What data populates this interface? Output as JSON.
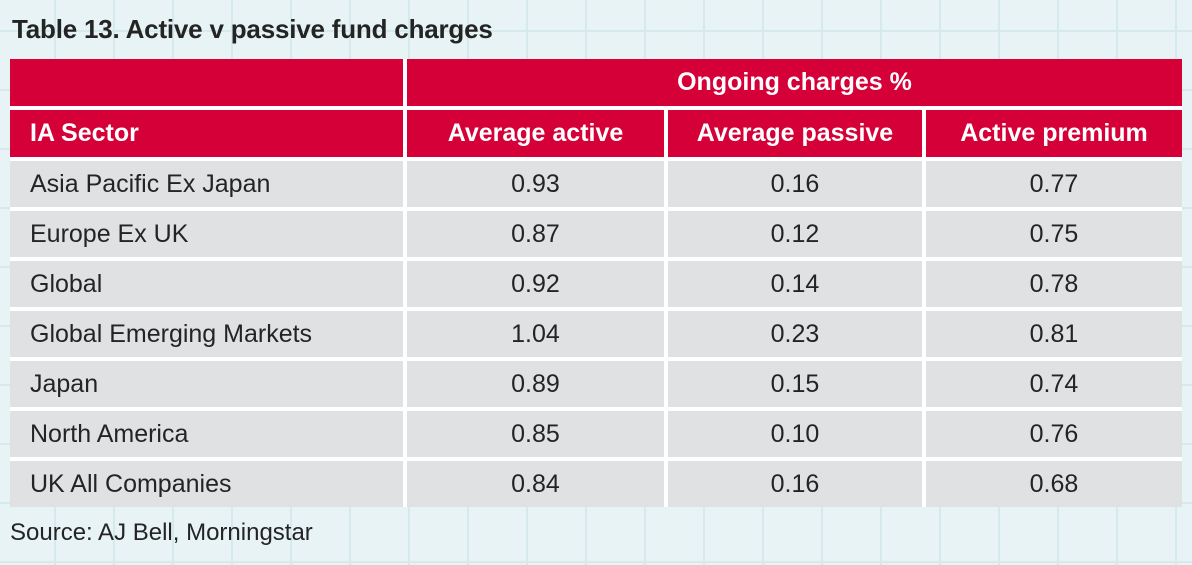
{
  "title": "Table 13. Active v passive fund charges",
  "source": "Source: AJ Bell, Morningstar",
  "table": {
    "group_header": "Ongoing charges %",
    "headers": {
      "sector": "IA Sector",
      "active": "Average active",
      "passive": "Average passive",
      "premium": "Active premium"
    },
    "rows": [
      {
        "sector": "Asia Pacific Ex Japan",
        "active": "0.93",
        "passive": "0.16",
        "premium": "0.77"
      },
      {
        "sector": "Europe Ex UK",
        "active": "0.87",
        "passive": "0.12",
        "premium": "0.75"
      },
      {
        "sector": "Global",
        "active": "0.92",
        "passive": "0.14",
        "premium": "0.78"
      },
      {
        "sector": "Global Emerging Markets",
        "active": "1.04",
        "passive": "0.23",
        "premium": "0.81"
      },
      {
        "sector": "Japan",
        "active": "0.89",
        "passive": "0.15",
        "premium": "0.74"
      },
      {
        "sector": "North America",
        "active": "0.85",
        "passive": "0.10",
        "premium": "0.76"
      },
      {
        "sector": "UK All Companies",
        "active": "0.84",
        "passive": "0.16",
        "premium": "0.68"
      }
    ]
  },
  "colors": {
    "header_red": "#d50037",
    "row_gray": "#e0e1e2",
    "background": "#e7f3f5",
    "grid_line": "#d6e9ec",
    "gap_white": "#ffffff",
    "text_dark": "#242424"
  },
  "chart_data": {
    "type": "table",
    "title": "Table 13. Active v passive fund charges",
    "group_header": "Ongoing charges %",
    "columns": [
      "IA Sector",
      "Average active",
      "Average passive",
      "Active premium"
    ],
    "rows": [
      [
        "Asia Pacific Ex Japan",
        0.93,
        0.16,
        0.77
      ],
      [
        "Europe Ex UK",
        0.87,
        0.12,
        0.75
      ],
      [
        "Global",
        0.92,
        0.14,
        0.78
      ],
      [
        "Global Emerging Markets",
        1.04,
        0.23,
        0.81
      ],
      [
        "Japan",
        0.89,
        0.15,
        0.74
      ],
      [
        "North America",
        0.85,
        0.1,
        0.76
      ],
      [
        "UK All Companies",
        0.84,
        0.16,
        0.68
      ]
    ],
    "source": "Source: AJ Bell, Morningstar",
    "layout_hints": {
      "header_style": "red background, white bold text",
      "body_style": "light gray rows separated by white gaps",
      "numeric_alignment": "center",
      "sector_alignment": "left"
    }
  }
}
